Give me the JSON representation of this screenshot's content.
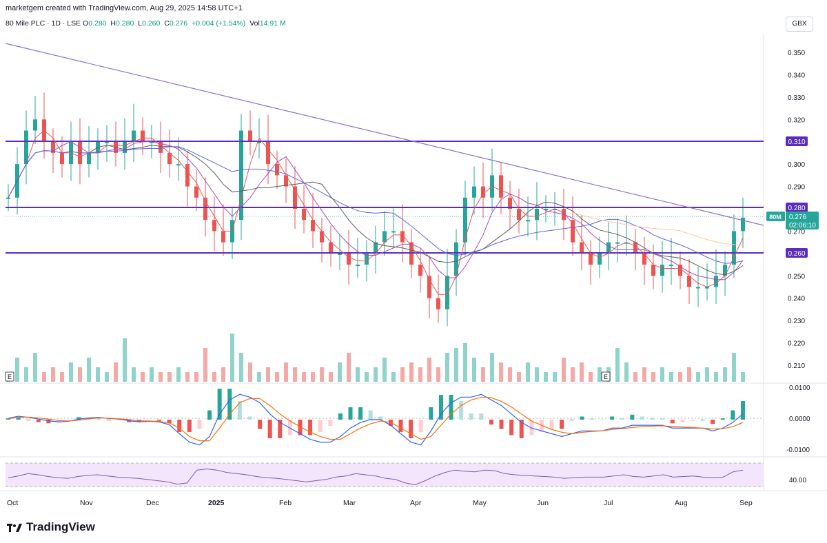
{
  "header": {
    "credit": "marketgem created with TradingView.com, Aug 29, 2025 14:58 UTC+1",
    "symbol_line": "80 Mile PLC · 1D · LSE",
    "o_label": "O",
    "o_value": "0.280",
    "h_label": "H",
    "h_value": "0.280",
    "l_label": "L",
    "l_value": "0.260",
    "c_label": "C",
    "c_value": "0.276",
    "change": "+0.004 (+1.54%)",
    "vol_label": "Vol",
    "vol_value": "14.91 M",
    "currency": "GBX"
  },
  "price_axis": {
    "ticks": [
      "0.350",
      "0.340",
      "0.330",
      "0.320",
      "0.310",
      "0.300",
      "0.290",
      "0.280",
      "0.270",
      "0.260",
      "0.250",
      "0.240",
      "0.230",
      "0.220",
      "0.210"
    ],
    "level_labels": [
      "0.310",
      "0.280",
      "0.260"
    ],
    "last_price_label": "0.276",
    "last_price_ticker": "80M",
    "countdown": "02:06:10"
  },
  "macd_axis": {
    "ticks": [
      "0.0100",
      "0.0000",
      "-0.0100"
    ]
  },
  "rsi_axis": {
    "ticks": [
      "40.00"
    ]
  },
  "x_axis": {
    "labels": [
      "Oct",
      "Nov",
      "Dec",
      "2025",
      "Feb",
      "Mar",
      "Apr",
      "May",
      "Jun",
      "Jul",
      "Aug",
      "Sep"
    ]
  },
  "earnings_marker": "E",
  "footer": {
    "brand": "TradingView"
  },
  "colors": {
    "up": "#26a69a",
    "down": "#ef5350",
    "level": "#5b2dbf",
    "trend": "#8e6fd1",
    "rsi_fill": "#f1e1fb",
    "rsi_line": "#7e57c2",
    "macd_line": "#2962ff",
    "signal_line": "#ff6d00"
  },
  "chart_data": {
    "type": "candlestick",
    "x": [
      "Oct",
      "Nov",
      "Dec",
      "2025",
      "Feb",
      "Mar",
      "Apr",
      "May",
      "Jun",
      "Jul",
      "Aug",
      "Sep"
    ],
    "ylim": [
      0.204,
      0.357
    ],
    "horizontal_levels": [
      0.31,
      0.28,
      0.26
    ],
    "downtrend_line": {
      "from": [
        "Oct",
        0.353
      ],
      "to": [
        "Sep",
        0.27
      ]
    },
    "close_series": [
      0.285,
      0.3,
      0.315,
      0.32,
      0.31,
      0.305,
      0.3,
      0.31,
      0.3,
      0.305,
      0.31,
      0.31,
      0.305,
      0.31,
      0.315,
      0.31,
      0.31,
      0.305,
      0.3,
      0.3,
      0.29,
      0.285,
      0.275,
      0.27,
      0.265,
      0.275,
      0.315,
      0.31,
      0.31,
      0.3,
      0.295,
      0.29,
      0.28,
      0.275,
      0.27,
      0.265,
      0.26,
      0.26,
      0.255,
      0.255,
      0.26,
      0.265,
      0.27,
      0.27,
      0.265,
      0.255,
      0.25,
      0.24,
      0.235,
      0.25,
      0.265,
      0.285,
      0.29,
      0.285,
      0.295,
      0.285,
      0.28,
      0.275,
      0.275,
      0.28,
      0.28,
      0.28,
      0.275,
      0.265,
      0.26,
      0.255,
      0.26,
      0.265,
      0.265,
      0.265,
      0.26,
      0.255,
      0.25,
      0.255,
      0.255,
      0.25,
      0.245,
      0.245,
      0.245,
      0.25,
      0.255,
      0.27,
      0.276
    ],
    "volume_relative": [
      0.2,
      0.5,
      0.3,
      0.6,
      0.2,
      0.3,
      0.2,
      0.4,
      0.3,
      0.5,
      0.3,
      0.2,
      0.4,
      0.9,
      0.3,
      0.2,
      0.3,
      0.2,
      0.2,
      0.3,
      0.2,
      0.2,
      0.7,
      0.2,
      0.3,
      1.0,
      0.6,
      0.4,
      0.2,
      0.3,
      0.2,
      0.4,
      0.3,
      0.2,
      0.2,
      0.3,
      0.2,
      0.4,
      0.6,
      0.3,
      0.2,
      0.3,
      0.5,
      0.2,
      0.3,
      0.4,
      0.3,
      0.5,
      0.3,
      0.6,
      0.7,
      0.8,
      0.5,
      0.3,
      0.6,
      0.4,
      0.3,
      0.2,
      0.4,
      0.3,
      0.2,
      0.2,
      0.5,
      0.3,
      0.4,
      0.2,
      0.3,
      0.3,
      0.7,
      0.4,
      0.2,
      0.3,
      0.2,
      0.3,
      0.2,
      0.2,
      0.3,
      0.2,
      0.3,
      0.2,
      0.3,
      0.6,
      0.2
    ],
    "macd": [
      0.0005,
      0.0012,
      0.0008,
      0.0002,
      -0.0004,
      -0.0008,
      -0.0006,
      0.0002,
      0.0006,
      0.0008,
      0.0004,
      0.0002,
      -0.0004,
      -0.0008,
      -0.0006,
      -0.0008,
      -0.0018,
      -0.005,
      -0.008,
      -0.009,
      -0.006,
      0.002,
      0.007,
      0.009,
      0.008,
      0.006,
      0.002,
      -0.001,
      -0.003,
      -0.005,
      -0.007,
      -0.008,
      -0.008,
      -0.006,
      -0.003,
      -0.001,
      0.0,
      0.0,
      -0.002,
      -0.005,
      -0.008,
      -0.009,
      -0.004,
      0.002,
      0.006,
      0.008,
      0.008,
      0.009,
      0.007,
      0.005,
      0.002,
      -0.001,
      -0.003,
      -0.004,
      -0.005,
      -0.006,
      -0.005,
      -0.004,
      -0.004,
      -0.004,
      -0.003,
      -0.003,
      -0.002,
      -0.002,
      -0.002,
      -0.002,
      -0.003,
      -0.003,
      -0.003,
      -0.003,
      -0.004,
      -0.003,
      -0.001,
      0.002
    ],
    "macd_signal": [
      0.0003,
      0.0008,
      0.0009,
      0.0006,
      0.0002,
      -0.0003,
      -0.0005,
      -0.0002,
      0.0003,
      0.0006,
      0.0005,
      0.0003,
      0.0,
      -0.0004,
      -0.0005,
      -0.0006,
      -0.0012,
      -0.003,
      -0.006,
      -0.0075,
      -0.0075,
      -0.003,
      0.002,
      0.006,
      0.0075,
      0.0075,
      0.005,
      0.002,
      -0.0005,
      -0.0025,
      -0.0045,
      -0.006,
      -0.007,
      -0.007,
      -0.005,
      -0.003,
      -0.0015,
      -0.0005,
      -0.001,
      -0.003,
      -0.005,
      -0.007,
      -0.006,
      -0.002,
      0.002,
      0.005,
      0.007,
      0.008,
      0.0078,
      0.0065,
      0.0045,
      0.002,
      -0.0005,
      -0.002,
      -0.0035,
      -0.0045,
      -0.005,
      -0.0045,
      -0.0042,
      -0.004,
      -0.0035,
      -0.0032,
      -0.0028,
      -0.0025,
      -0.0023,
      -0.0022,
      -0.0024,
      -0.0026,
      -0.0028,
      -0.003,
      -0.0033,
      -0.0032,
      -0.0025,
      -0.001
    ],
    "macd_ylim": [
      -0.0125,
      0.012
    ],
    "rsi": [
      45,
      48,
      52,
      50,
      47,
      45,
      44,
      47,
      49,
      50,
      48,
      46,
      45,
      44,
      42,
      40,
      38,
      34,
      36,
      58,
      60,
      58,
      54,
      52,
      50,
      47,
      45,
      44,
      42,
      40,
      38,
      40,
      42,
      46,
      48,
      52,
      50,
      48,
      44,
      42,
      36,
      33,
      40,
      48,
      54,
      58,
      56,
      55,
      58,
      57,
      52,
      50,
      49,
      48,
      47,
      46,
      44,
      45,
      46,
      46,
      46,
      48,
      50,
      47,
      46,
      48,
      50,
      46,
      47,
      48,
      46,
      45,
      46,
      55,
      58
    ],
    "rsi_band": [
      30,
      70
    ]
  }
}
